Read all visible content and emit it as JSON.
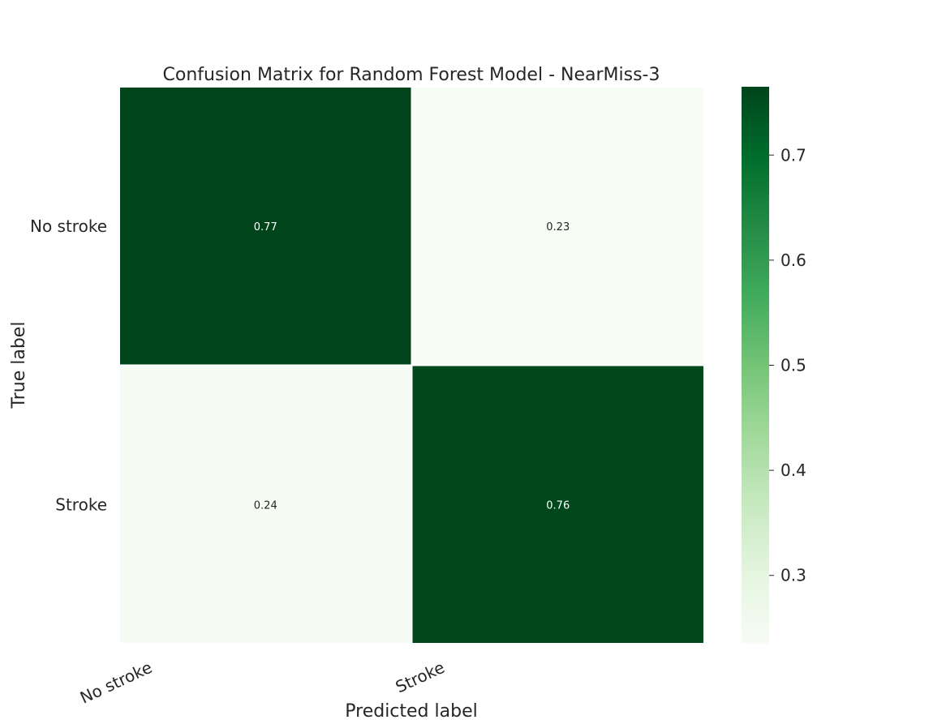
{
  "chart_data": {
    "type": "heatmap",
    "title": "Confusion Matrix for Random Forest Model - NearMiss-3",
    "xlabel": "Predicted label",
    "ylabel": "True label",
    "x_categories": [
      "No stroke",
      "Stroke"
    ],
    "y_categories": [
      "No stroke",
      "Stroke"
    ],
    "values": [
      [
        0.77,
        0.23
      ],
      [
        0.24,
        0.76
      ]
    ],
    "value_labels": [
      [
        "0.77",
        "0.23"
      ],
      [
        "0.24",
        "0.76"
      ]
    ],
    "colormap": "Greens",
    "colorbar": {
      "range": [
        0.235,
        0.765
      ],
      "ticks": [
        0.3,
        0.4,
        0.5,
        0.6,
        0.7
      ],
      "tick_labels": [
        "0.3",
        "0.4",
        "0.5",
        "0.6",
        "0.7"
      ]
    },
    "grid": false
  }
}
